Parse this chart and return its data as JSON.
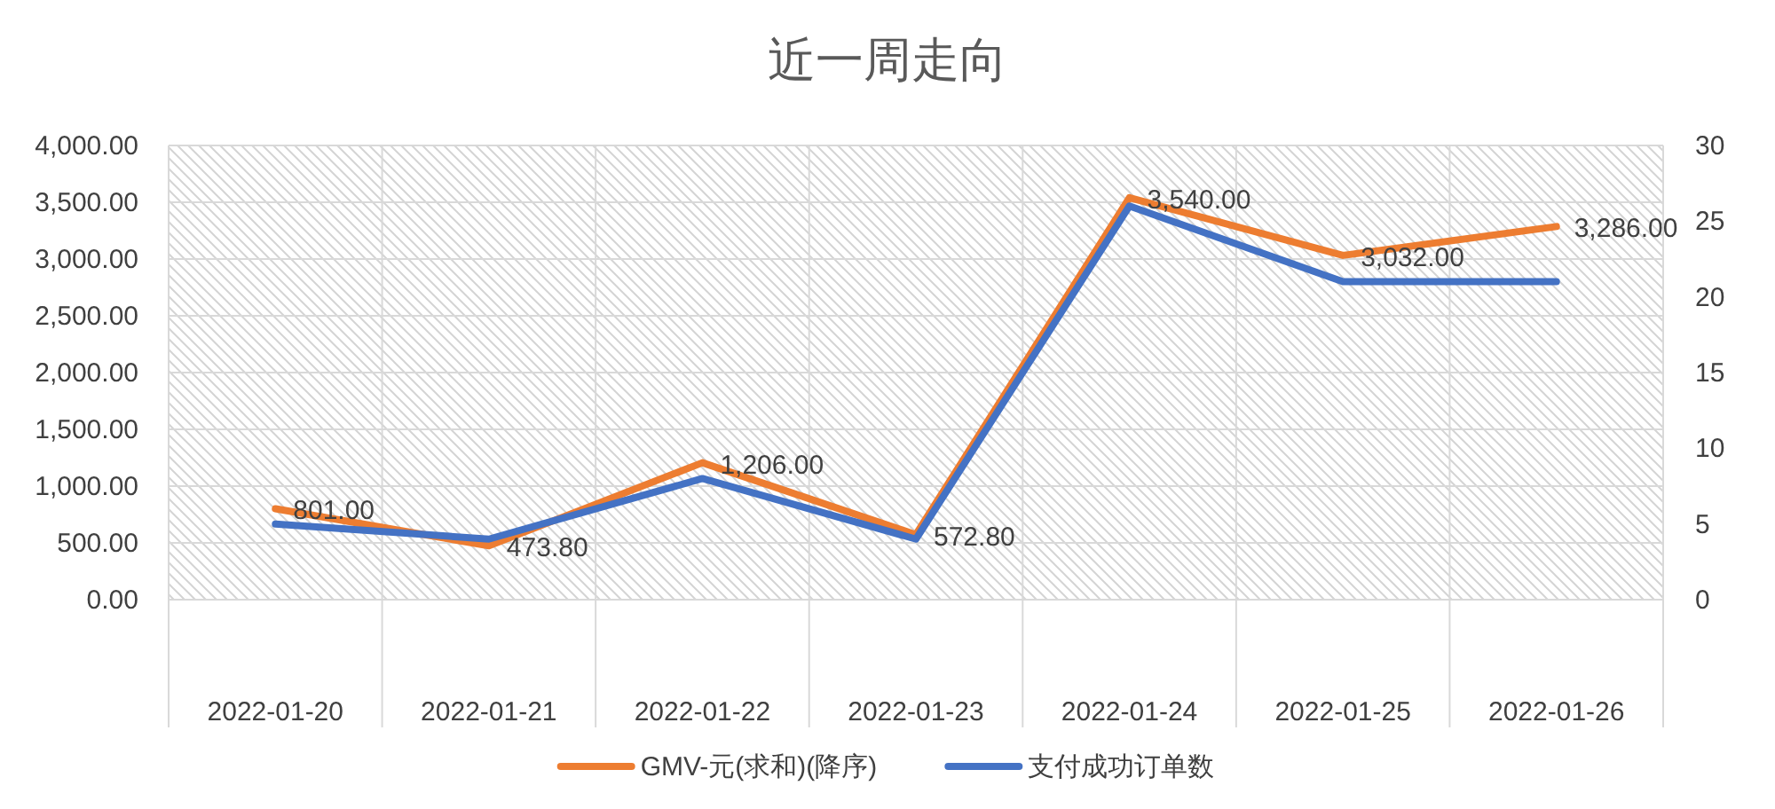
{
  "chart_data": {
    "type": "line",
    "title": "近一周走向",
    "categories": [
      "2022-01-20",
      "2022-01-21",
      "2022-01-22",
      "2022-01-23",
      "2022-01-24",
      "2022-01-25",
      "2022-01-26"
    ],
    "series": [
      {
        "name": "GMV-元(求和)(降序)",
        "color": "#ed7d31",
        "values": [
          801,
          473.8,
          1206,
          572.8,
          3540,
          3032,
          3286
        ],
        "value_labels": [
          "801.00",
          "473.80",
          "1,206.00",
          "572.80",
          "3,540.00",
          "3,032.00",
          "3,286.00"
        ]
      },
      {
        "name": "支付成功订单数",
        "color": "#4472c4",
        "axis": "y2",
        "values": [
          5,
          4,
          8,
          4,
          26,
          21,
          21
        ]
      }
    ],
    "ylim": [
      0,
      4000
    ],
    "yticks": [
      {
        "value": 0,
        "label": "0.00"
      },
      {
        "value": 500,
        "label": "500.00"
      },
      {
        "value": 1000,
        "label": "1,000.00"
      },
      {
        "value": 1500,
        "label": "1,500.00"
      },
      {
        "value": 2000,
        "label": "2,000.00"
      },
      {
        "value": 2500,
        "label": "2,500.00"
      },
      {
        "value": 3000,
        "label": "3,000.00"
      },
      {
        "value": 3500,
        "label": "3,500.00"
      },
      {
        "value": 4000,
        "label": "4,000.00"
      }
    ],
    "y2lim": [
      0,
      30
    ],
    "y2ticks": [
      0,
      5,
      10,
      15,
      20,
      25,
      30
    ],
    "grid": true,
    "legend": "bottom"
  }
}
